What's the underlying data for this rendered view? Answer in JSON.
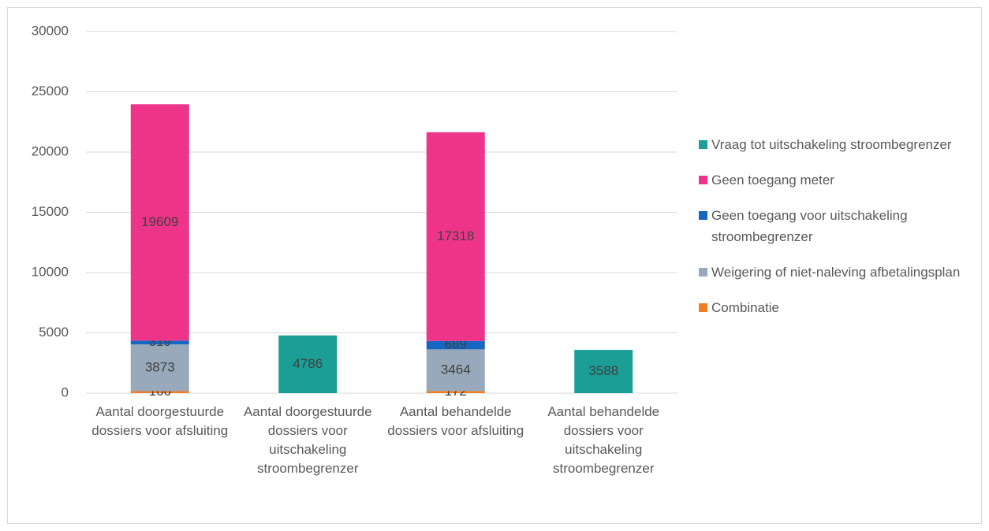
{
  "chart_data": {
    "type": "stacked_bar",
    "categories": [
      "Aantal doorgestuurde dossiers voor afsluiting",
      "Aantal doorgestuurde dossiers voor uitschakeling stroombegrenzer",
      "Aantal behandelde dossiers voor afsluiting",
      "Aantal behandelde dossiers voor uitschakeling stroombegrenzer"
    ],
    "series": [
      {
        "name": "Combinatie",
        "color": "#ee7d24",
        "values": [
          166,
          null,
          172,
          null
        ]
      },
      {
        "name": "Weigering of niet-naleving afbetalingsplan",
        "color": "#97a9bb",
        "values": [
          3873,
          null,
          3464,
          null
        ]
      },
      {
        "name": "Geen toegang voor uitschakeling stroombegrenzer",
        "color": "#1767c2",
        "values": [
          319,
          null,
          689,
          null
        ]
      },
      {
        "name": "Geen toegang meter",
        "color": "#ee3488",
        "values": [
          19609,
          null,
          17318,
          null
        ]
      },
      {
        "name": "Vraag tot uitschakeling stroombegrenzer",
        "color": "#1a9e96",
        "values": [
          null,
          4786,
          null,
          3588
        ]
      }
    ],
    "ylim": [
      0,
      30000
    ],
    "yticks": [
      0,
      5000,
      10000,
      15000,
      20000,
      25000,
      30000
    ],
    "grid": true,
    "legend": "right"
  }
}
